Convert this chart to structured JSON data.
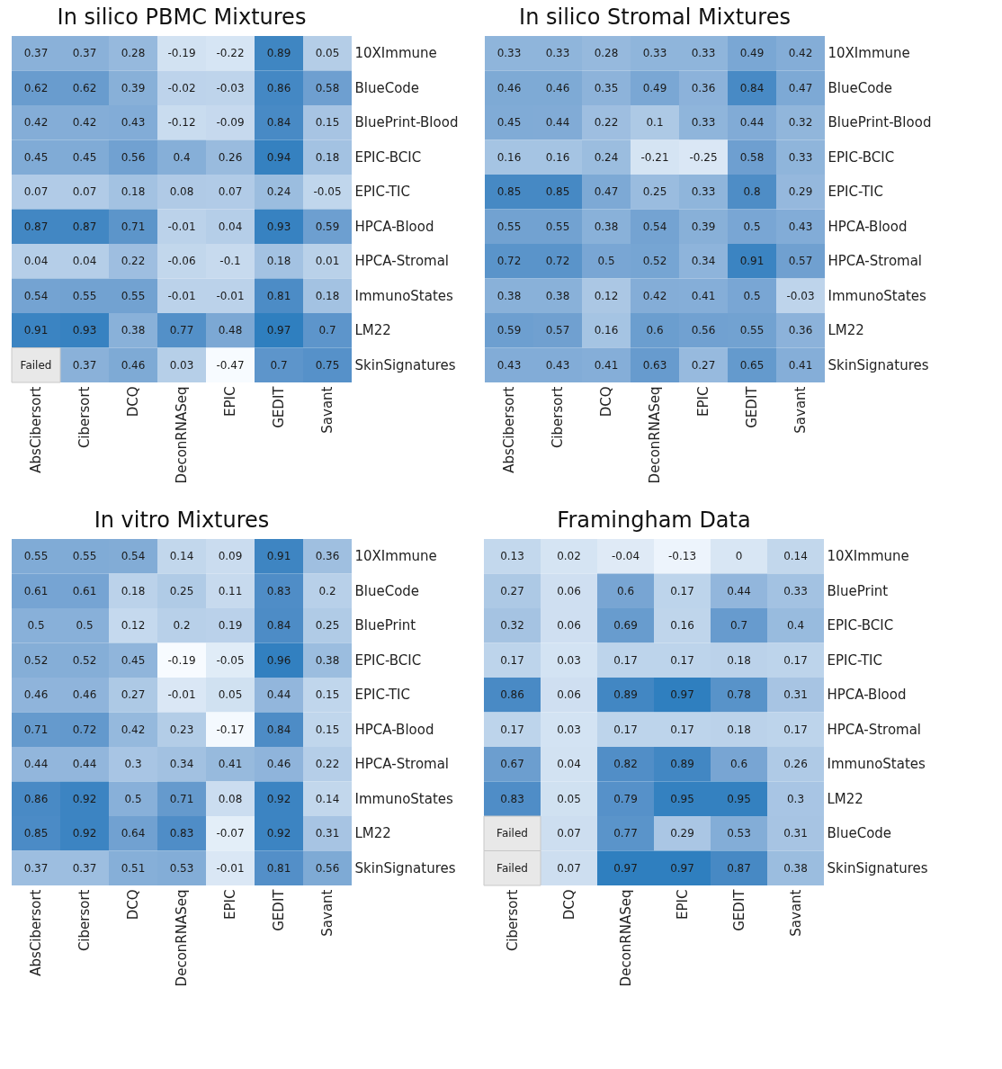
{
  "chart_data": [
    {
      "type": "heatmap",
      "data_labels": true,
      "title": "In silico PBMC Mixtures",
      "categories": [
        "AbsCibersort",
        "Cibersort",
        "DCQ",
        "DeconRNASeq",
        "EPIC",
        "GEDIT",
        "Savant"
      ],
      "y_categories": [
        "10XImmune",
        "BlueCode",
        "BluePrint-Blood",
        "EPIC-BCIC",
        "EPIC-TIC",
        "HPCA-Blood",
        "HPCA-Stromal",
        "ImmunoStates",
        "LM22",
        "SkinSignatures"
      ],
      "cells": [
        [
          0.37,
          0.37,
          0.28,
          -0.19,
          -0.22,
          0.89,
          0.05
        ],
        [
          0.62,
          0.62,
          0.39,
          -0.02,
          -0.03,
          0.86,
          0.58
        ],
        [
          0.42,
          0.42,
          0.43,
          -0.12,
          -0.09,
          0.84,
          0.15
        ],
        [
          0.45,
          0.45,
          0.56,
          0.4,
          0.26,
          0.94,
          0.18
        ],
        [
          0.07,
          0.07,
          0.18,
          0.08,
          0.07,
          0.24,
          -0.05
        ],
        [
          0.87,
          0.87,
          0.71,
          -0.01,
          0.04,
          0.93,
          0.59
        ],
        [
          0.04,
          0.04,
          0.22,
          -0.06,
          -0.1,
          0.18,
          0.01
        ],
        [
          0.54,
          0.55,
          0.55,
          -0.01,
          -0.01,
          0.81,
          0.18
        ],
        [
          0.91,
          0.93,
          0.38,
          0.77,
          0.48,
          0.97,
          0.7
        ],
        [
          null,
          0.37,
          0.46,
          0.03,
          -0.47,
          0.7,
          0.75
        ]
      ],
      "cell_labels": [
        [
          "0.37",
          "0.37",
          "0.28",
          "-0.19",
          "-0.22",
          "0.89",
          "0.05"
        ],
        [
          "0.62",
          "0.62",
          "0.39",
          "-0.02",
          "-0.03",
          "0.86",
          "0.58"
        ],
        [
          "0.42",
          "0.42",
          "0.43",
          "-0.12",
          "-0.09",
          "0.84",
          "0.15"
        ],
        [
          "0.45",
          "0.45",
          "0.56",
          "0.4",
          "0.26",
          "0.94",
          "0.18"
        ],
        [
          "0.07",
          "0.07",
          "0.18",
          "0.08",
          "0.07",
          "0.24",
          "-0.05"
        ],
        [
          "0.87",
          "0.87",
          "0.71",
          "-0.01",
          "0.04",
          "0.93",
          "0.59"
        ],
        [
          "0.04",
          "0.04",
          "0.22",
          "-0.06",
          "-0.1",
          "0.18",
          "0.01"
        ],
        [
          "0.54",
          "0.55",
          "0.55",
          "-0.01",
          "-0.01",
          "0.81",
          "0.18"
        ],
        [
          "0.91",
          "0.93",
          "0.38",
          "0.77",
          "0.48",
          "0.97",
          "0.7"
        ],
        [
          "Failed",
          "0.37",
          "0.46",
          "0.03",
          "-0.47",
          "0.7",
          "0.75"
        ]
      ]
    },
    {
      "type": "heatmap",
      "data_labels": true,
      "title": "In silico Stromal Mixtures",
      "categories": [
        "AbsCibersort",
        "Cibersort",
        "DCQ",
        "DeconRNASeq",
        "EPIC",
        "GEDIT",
        "Savant"
      ],
      "y_categories": [
        "10XImmune",
        "BlueCode",
        "BluePrint-Blood",
        "EPIC-BCIC",
        "EPIC-TIC",
        "HPCA-Blood",
        "HPCA-Stromal",
        "ImmunoStates",
        "LM22",
        "SkinSignatures"
      ],
      "cells": [
        [
          0.33,
          0.33,
          0.28,
          0.33,
          0.33,
          0.49,
          0.42
        ],
        [
          0.46,
          0.46,
          0.35,
          0.49,
          0.36,
          0.84,
          0.47
        ],
        [
          0.45,
          0.44,
          0.22,
          0.1,
          0.33,
          0.44,
          0.32
        ],
        [
          0.16,
          0.16,
          0.24,
          -0.21,
          -0.25,
          0.58,
          0.33
        ],
        [
          0.85,
          0.85,
          0.47,
          0.25,
          0.33,
          0.8,
          0.29
        ],
        [
          0.55,
          0.55,
          0.38,
          0.54,
          0.39,
          0.5,
          0.43
        ],
        [
          0.72,
          0.72,
          0.5,
          0.52,
          0.34,
          0.91,
          0.57
        ],
        [
          0.38,
          0.38,
          0.12,
          0.42,
          0.41,
          0.5,
          -0.03
        ],
        [
          0.59,
          0.57,
          0.16,
          0.6,
          0.56,
          0.55,
          0.36
        ],
        [
          0.43,
          0.43,
          0.41,
          0.63,
          0.27,
          0.65,
          0.41
        ]
      ]
    },
    {
      "type": "heatmap",
      "data_labels": true,
      "title": "In vitro Mixtures",
      "categories": [
        "AbsCibersort",
        "Cibersort",
        "DCQ",
        "DeconRNASeq",
        "EPIC",
        "GEDIT",
        "Savant"
      ],
      "y_categories": [
        "10XImmune",
        "BlueCode",
        "BluePrint",
        "EPIC-BCIC",
        "EPIC-TIC",
        "HPCA-Blood",
        "HPCA-Stromal",
        "ImmunoStates",
        "LM22",
        "SkinSignatures"
      ],
      "cells": [
        [
          0.55,
          0.55,
          0.54,
          0.14,
          0.09,
          0.91,
          0.36
        ],
        [
          0.61,
          0.61,
          0.18,
          0.25,
          0.11,
          0.83,
          0.2
        ],
        [
          0.5,
          0.5,
          0.12,
          0.2,
          0.19,
          0.84,
          0.25
        ],
        [
          0.52,
          0.52,
          0.45,
          -0.19,
          -0.05,
          0.96,
          0.38
        ],
        [
          0.46,
          0.46,
          0.27,
          -0.01,
          0.05,
          0.44,
          0.15
        ],
        [
          0.71,
          0.72,
          0.42,
          0.23,
          -0.17,
          0.84,
          0.15
        ],
        [
          0.44,
          0.44,
          0.3,
          0.34,
          0.41,
          0.46,
          0.22
        ],
        [
          0.86,
          0.92,
          0.5,
          0.71,
          0.08,
          0.92,
          0.14
        ],
        [
          0.85,
          0.92,
          0.64,
          0.83,
          -0.07,
          0.92,
          0.31
        ],
        [
          0.37,
          0.37,
          0.51,
          0.53,
          -0.01,
          0.81,
          0.56
        ]
      ]
    },
    {
      "type": "heatmap",
      "data_labels": true,
      "title": "Framingham Data",
      "categories": [
        "Cibersort",
        "DCQ",
        "DeconRNASeq",
        "EPIC",
        "GEDIT",
        "Savant"
      ],
      "y_categories": [
        "10XImmune",
        "BluePrint",
        "EPIC-BCIC",
        "EPIC-TIC",
        "HPCA-Blood",
        "HPCA-Stromal",
        "ImmunoStates",
        "LM22",
        "BlueCode",
        "SkinSignatures"
      ],
      "cells": [
        [
          0.13,
          0.02,
          -0.04,
          -0.13,
          0,
          0.14
        ],
        [
          0.27,
          0.06,
          0.6,
          0.17,
          0.44,
          0.33
        ],
        [
          0.32,
          0.06,
          0.69,
          0.16,
          0.7,
          0.4
        ],
        [
          0.17,
          0.03,
          0.17,
          0.17,
          0.18,
          0.17
        ],
        [
          0.86,
          0.06,
          0.89,
          0.97,
          0.78,
          0.31
        ],
        [
          0.17,
          0.03,
          0.17,
          0.17,
          0.18,
          0.17
        ],
        [
          0.67,
          0.04,
          0.82,
          0.89,
          0.6,
          0.26
        ],
        [
          0.83,
          0.05,
          0.79,
          0.95,
          0.95,
          0.3
        ],
        [
          null,
          0.07,
          0.77,
          0.29,
          0.53,
          0.31
        ],
        [
          null,
          0.07,
          0.97,
          0.97,
          0.87,
          0.38
        ]
      ],
      "cell_labels": [
        [
          "0.13",
          "0.02",
          "-0.04",
          "-0.13",
          "0",
          "0.14"
        ],
        [
          "0.27",
          "0.06",
          "0.6",
          "0.17",
          "0.44",
          "0.33"
        ],
        [
          "0.32",
          "0.06",
          "0.69",
          "0.16",
          "0.7",
          "0.4"
        ],
        [
          "0.17",
          "0.03",
          "0.17",
          "0.17",
          "0.18",
          "0.17"
        ],
        [
          "0.86",
          "0.06",
          "0.89",
          "0.97",
          "0.78",
          "0.31"
        ],
        [
          "0.17",
          "0.03",
          "0.17",
          "0.17",
          "0.18",
          "0.17"
        ],
        [
          "0.67",
          "0.04",
          "0.82",
          "0.89",
          "0.6",
          "0.26"
        ],
        [
          "0.83",
          "0.05",
          "0.79",
          "0.95",
          "0.95",
          "0.3"
        ],
        [
          "Failed",
          "0.07",
          "0.77",
          "0.29",
          "0.53",
          "0.31"
        ],
        [
          "Failed",
          "0.07",
          "0.97",
          "0.97",
          "0.87",
          "0.38"
        ]
      ]
    }
  ]
}
